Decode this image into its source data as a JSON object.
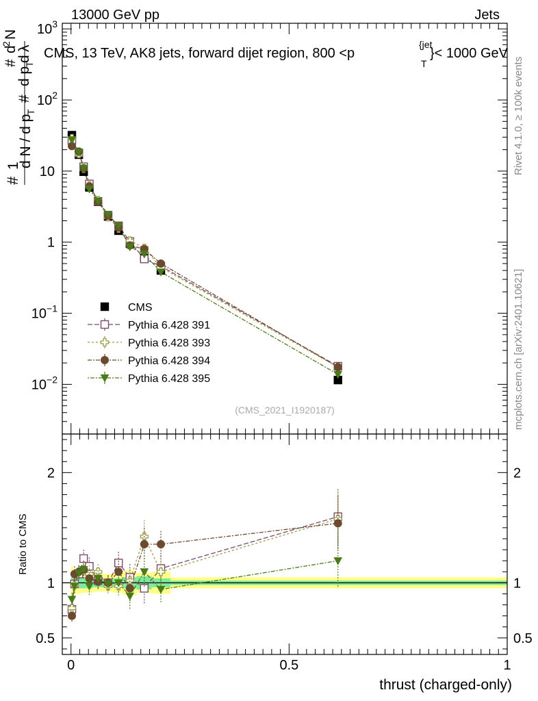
{
  "header": {
    "energy_label": "13000 GeV pp",
    "category_label": "Jets",
    "plot_title": "CMS, 13 TeV, AK8 jets, forward dijet region, 800 <p",
    "title_sup": "{jet",
    "title_sub": "T",
    "title_end": "}< 1000 GeV",
    "side_rivet": "Rivet 4.1.0, ≥ 100k events",
    "side_mcplots": "mcplots.cern.ch [arXiv:2401.10621]",
    "watermark": "(CMS_2021_I1920187)"
  },
  "colors": {
    "cms": "#000000",
    "p391": "#7a4a6a",
    "p393": "#9a9a4a",
    "p394": "#6b4a2e",
    "p395": "#4a7a1a",
    "band_inner": "#7fe89a",
    "band_outer": "#ffff88"
  },
  "chart_data": [
    {
      "type": "scatter",
      "title": "CMS, 13 TeV, AK8 jets, forward dijet region, 800 < pT jet < 1000 GeV",
      "ylabel": "1/dN/dpT  d²N/dpT dλ",
      "yscale": "log",
      "ylim": [
        0.002,
        1200
      ],
      "xlim": [
        -0.02,
        1.0
      ],
      "y_ticks": [
        {
          "v": 0.01,
          "label": "10",
          "sup": "−2"
        },
        {
          "v": 0.1,
          "label": "10",
          "sup": "−1"
        },
        {
          "v": 1,
          "label": "1",
          "sup": ""
        },
        {
          "v": 10,
          "label": "10",
          "sup": ""
        },
        {
          "v": 100,
          "label": "10",
          "sup": "2"
        },
        {
          "v": 1000,
          "label": "10",
          "sup": "3"
        }
      ],
      "x": [
        0.002,
        0.018,
        0.029,
        0.042,
        0.062,
        0.085,
        0.109,
        0.135,
        0.168,
        0.206,
        0.612
      ],
      "series": [
        {
          "name": "CMS",
          "marker": "filled-square",
          "color_key": "cms",
          "values": [
            32,
            17,
            9.8,
            5.9,
            3.7,
            2.3,
            1.45,
            0.95,
            0.6,
            0.4,
            0.0115
          ]
        },
        {
          "name": "Pythia 6.428 391",
          "marker": "open-square",
          "color_key": "p391",
          "values": [
            27,
            18,
            11.5,
            6.6,
            3.75,
            2.4,
            1.7,
            1.02,
            0.58,
            0.46,
            0.018
          ]
        },
        {
          "name": "Pythia 6.428 393",
          "marker": "open-cross",
          "color_key": "p393",
          "values": [
            29,
            17.5,
            10.8,
            6.3,
            3.9,
            2.25,
            1.55,
            1.05,
            0.83,
            0.44,
            0.0175
          ]
        },
        {
          "name": "Pythia 6.428 394",
          "marker": "filled-circle",
          "color_key": "p394",
          "values": [
            22.5,
            18.8,
            11,
            6.1,
            3.7,
            2.35,
            1.6,
            0.9,
            0.8,
            0.5,
            0.0175
          ]
        },
        {
          "name": "Pythia 6.428 395",
          "marker": "filled-triangle-down",
          "color_key": "p395",
          "values": [
            27.5,
            18.5,
            11,
            5.6,
            3.8,
            2.45,
            1.7,
            0.86,
            0.68,
            0.38,
            0.0138
          ]
        }
      ]
    },
    {
      "type": "scatter",
      "xlabel": "thrust (charged-only)",
      "ylabel": "Ratio to CMS",
      "ylim": [
        0.35,
        2.35
      ],
      "xlim": [
        -0.02,
        1.0
      ],
      "y_ticks": [
        0.5,
        1,
        2
      ],
      "y_tick_labels": [
        "0.5",
        "1",
        "2"
      ],
      "x_ticks": [
        0,
        0.5,
        1
      ],
      "x_tick_labels": [
        "0",
        "0.5",
        "1"
      ],
      "x": [
        0.002,
        0.008,
        0.018,
        0.029,
        0.042,
        0.062,
        0.085,
        0.109,
        0.135,
        0.168,
        0.206,
        0.612
      ],
      "band_bins": [
        {
          "x0": 0.0,
          "x1": 0.005,
          "inner": 0.05,
          "outer": 0.15
        },
        {
          "x0": 0.005,
          "x1": 0.012,
          "inner": 0.06,
          "outer": 0.1
        },
        {
          "x0": 0.012,
          "x1": 0.024,
          "inner": 0.05,
          "outer": 0.1
        },
        {
          "x0": 0.024,
          "x1": 0.035,
          "inner": 0.05,
          "outer": 0.09
        },
        {
          "x0": 0.035,
          "x1": 0.05,
          "inner": 0.05,
          "outer": 0.09
        },
        {
          "x0": 0.05,
          "x1": 0.075,
          "inner": 0.04,
          "outer": 0.08
        },
        {
          "x0": 0.075,
          "x1": 0.095,
          "inner": 0.04,
          "outer": 0.08
        },
        {
          "x0": 0.095,
          "x1": 0.12,
          "inner": 0.04,
          "outer": 0.09
        },
        {
          "x0": 0.12,
          "x1": 0.15,
          "inner": 0.05,
          "outer": 0.11
        },
        {
          "x0": 0.15,
          "x1": 0.185,
          "inner": 0.06,
          "outer": 0.09
        },
        {
          "x0": 0.185,
          "x1": 0.228,
          "inner": 0.04,
          "outer": 0.1
        },
        {
          "x0": 0.228,
          "x1": 1.0,
          "inner": 0.02,
          "outer": 0.05
        }
      ],
      "series": [
        {
          "name": "Pythia 6.428 391",
          "marker": "open-square",
          "color_key": "p391",
          "values": [
            0.76,
            0.99,
            1.08,
            1.22,
            1.15,
            1.02,
            1.0,
            1.18,
            1.05,
            0.95,
            1.13,
            1.6
          ],
          "err": [
            0.06,
            0.07,
            0.06,
            0.08,
            0.08,
            0.07,
            0.07,
            0.1,
            0.12,
            0.15,
            0.12,
            0.25
          ]
        },
        {
          "name": "Pythia 6.428 393",
          "marker": "open-cross",
          "color_key": "p393",
          "values": [
            0.77,
            0.98,
            1.1,
            1.12,
            1.08,
            1.1,
            0.97,
            0.97,
            1.02,
            1.42,
            1.1,
            1.58
          ],
          "err": [
            0.06,
            0.07,
            0.06,
            0.08,
            0.08,
            0.07,
            0.07,
            0.1,
            0.12,
            0.15,
            0.12,
            0.25
          ]
        },
        {
          "name": "Pythia 6.428 394",
          "marker": "filled-circle",
          "color_key": "p394",
          "values": [
            0.7,
            1.08,
            1.1,
            1.12,
            1.04,
            1.01,
            1.0,
            1.1,
            0.95,
            1.35,
            1.35,
            1.54
          ],
          "err": [
            0.06,
            0.07,
            0.06,
            0.08,
            0.08,
            0.07,
            0.07,
            0.1,
            0.12,
            0.15,
            0.12,
            0.25
          ]
        },
        {
          "name": "Pythia 6.428 395",
          "marker": "filled-triangle-down",
          "color_key": "p395",
          "values": [
            0.85,
            0.97,
            1.09,
            1.12,
            0.97,
            1.04,
            0.99,
            1.0,
            0.88,
            1.1,
            0.94,
            1.2
          ],
          "err": [
            0.06,
            0.07,
            0.06,
            0.08,
            0.08,
            0.07,
            0.07,
            0.1,
            0.12,
            0.15,
            0.12,
            0.25
          ]
        }
      ]
    }
  ]
}
